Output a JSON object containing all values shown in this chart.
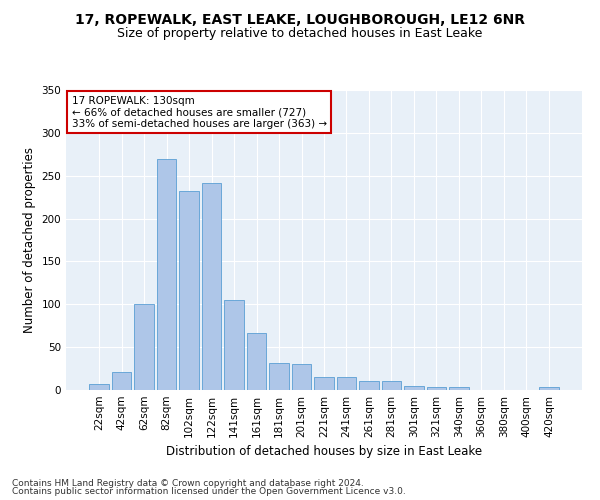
{
  "title1": "17, ROPEWALK, EAST LEAKE, LOUGHBOROUGH, LE12 6NR",
  "title2": "Size of property relative to detached houses in East Leake",
  "xlabel": "Distribution of detached houses by size in East Leake",
  "ylabel": "Number of detached properties",
  "categories": [
    "22sqm",
    "42sqm",
    "62sqm",
    "82sqm",
    "102sqm",
    "122sqm",
    "141sqm",
    "161sqm",
    "181sqm",
    "201sqm",
    "221sqm",
    "241sqm",
    "261sqm",
    "281sqm",
    "301sqm",
    "321sqm",
    "340sqm",
    "360sqm",
    "380sqm",
    "400sqm",
    "420sqm"
  ],
  "values": [
    7,
    21,
    100,
    270,
    232,
    241,
    105,
    67,
    31,
    30,
    15,
    15,
    10,
    10,
    5,
    4,
    3,
    0,
    0,
    0,
    3
  ],
  "bar_color": "#aec6e8",
  "bar_edge_color": "#5a9fd4",
  "annotation_text": "17 ROPEWALK: 130sqm\n← 66% of detached houses are smaller (727)\n33% of semi-detached houses are larger (363) →",
  "annotation_box_color": "#ffffff",
  "annotation_box_edge": "#cc0000",
  "ylim": [
    0,
    350
  ],
  "yticks": [
    0,
    50,
    100,
    150,
    200,
    250,
    300,
    350
  ],
  "bg_color": "#e8f0f8",
  "footer1": "Contains HM Land Registry data © Crown copyright and database right 2024.",
  "footer2": "Contains public sector information licensed under the Open Government Licence v3.0.",
  "title1_fontsize": 10,
  "title2_fontsize": 9,
  "xlabel_fontsize": 8.5,
  "ylabel_fontsize": 8.5,
  "tick_fontsize": 7.5,
  "footer_fontsize": 6.5,
  "annotation_fontsize": 7.5
}
